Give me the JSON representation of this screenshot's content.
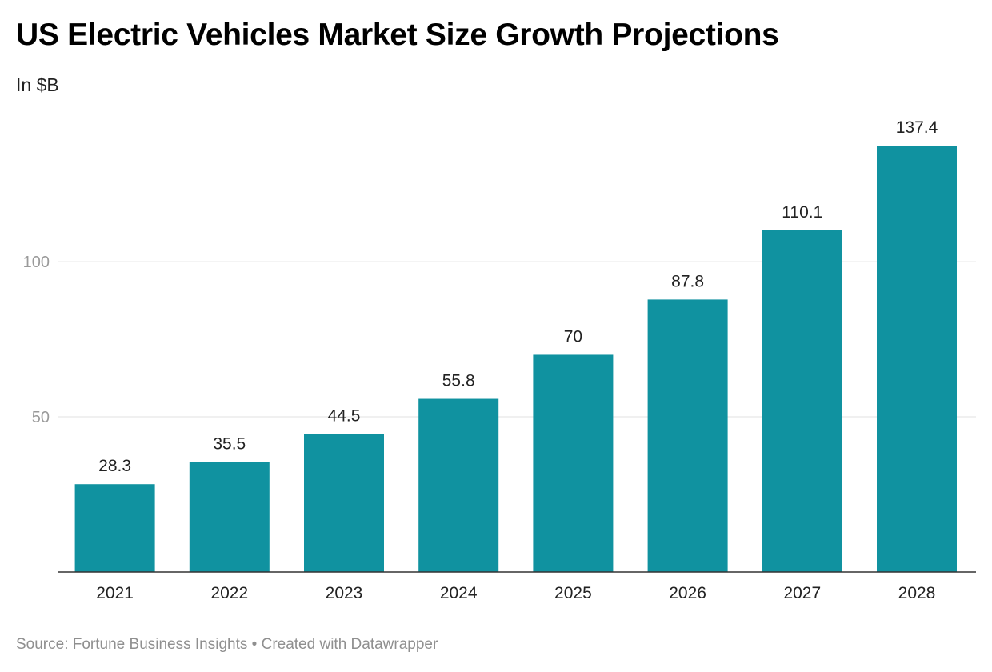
{
  "title": "US Electric Vehicles Market Size Growth Projections",
  "subtitle": "In $B",
  "footer": {
    "source": "Source: Fortune Business Insights",
    "separator": "•",
    "credit": "Created with Datawrapper"
  },
  "colors": {
    "bar": "#1092a0",
    "grid": "#e2e2e2",
    "axis": "#333333"
  },
  "chart_data": {
    "type": "bar",
    "title": "US Electric Vehicles Market Size Growth Projections",
    "subtitle": "In $B",
    "xlabel": "",
    "ylabel": "",
    "categories": [
      "2021",
      "2022",
      "2023",
      "2024",
      "2025",
      "2026",
      "2027",
      "2028"
    ],
    "values": [
      28.3,
      35.5,
      44.5,
      55.8,
      70,
      87.8,
      110.1,
      137.4
    ],
    "value_labels": [
      "28.3",
      "35.5",
      "44.5",
      "55.8",
      "70",
      "87.8",
      "110.1",
      "137.4"
    ],
    "y_ticks": [
      50,
      100
    ],
    "y_tick_labels": [
      "50",
      "100"
    ],
    "ylim": [
      0,
      137.4
    ],
    "grid": true,
    "legend": "none"
  }
}
